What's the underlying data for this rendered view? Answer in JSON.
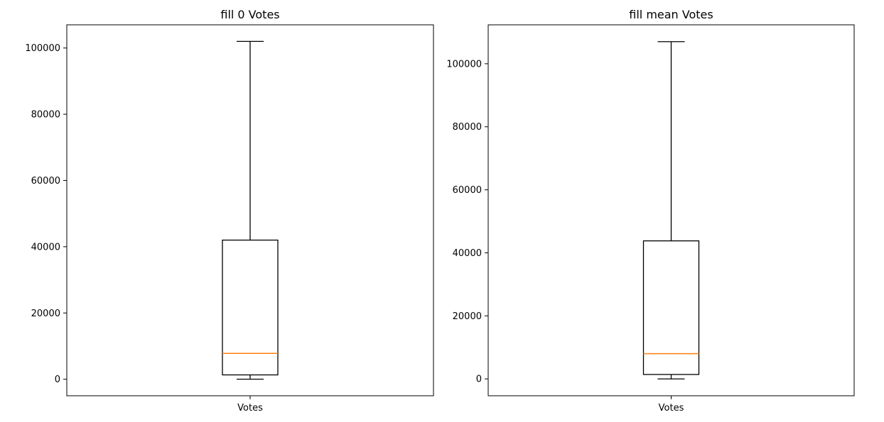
{
  "chart_data": [
    {
      "type": "box",
      "title": "fill 0 Votes",
      "categories": [
        "Votes"
      ],
      "ylim": [
        -5000,
        107000
      ],
      "yticks": [
        0,
        20000,
        40000,
        60000,
        80000,
        100000
      ],
      "box": {
        "whisker_low": 0,
        "q1": 1300,
        "median": 7800,
        "q3": 42000,
        "whisker_high": 102000
      },
      "grid": false
    },
    {
      "type": "box",
      "title": "fill mean Votes",
      "categories": [
        "Votes"
      ],
      "ylim": [
        -5350,
        112350
      ],
      "yticks": [
        0,
        20000,
        40000,
        60000,
        80000,
        100000
      ],
      "box": {
        "whisker_low": 0,
        "q1": 1400,
        "median": 8000,
        "q3": 43800,
        "whisker_high": 107000
      },
      "grid": false
    }
  ],
  "colors": {
    "box_edge": "#000000",
    "median": "#ff7f0e",
    "background": "#ffffff"
  }
}
